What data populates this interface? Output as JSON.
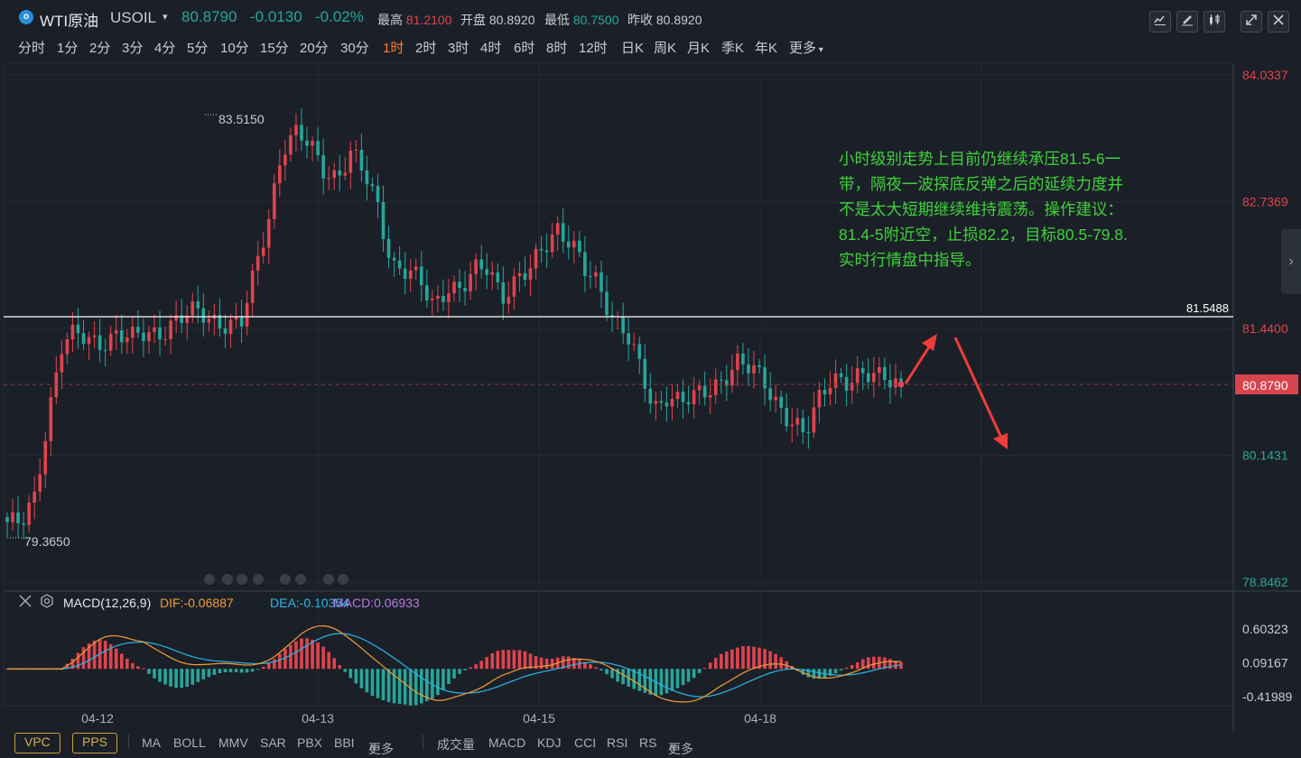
{
  "header": {
    "logo_letter": "o",
    "name": "WTI原油",
    "symbol": "USOIL",
    "last": "80.8790",
    "change": "-0.0130",
    "change_pct": "-0.02%",
    "high_label": "最高",
    "high": "81.2100",
    "open_label": "开盘",
    "open": "80.8920",
    "low_label": "最低",
    "low": "80.7500",
    "prev_label": "昨收",
    "prev": "80.8920"
  },
  "toolbar_icons": [
    "line-chart-icon",
    "pencil-icon",
    "candlestick-icon",
    "expand-icon",
    "close-icon"
  ],
  "intervals": [
    "分时",
    "1分",
    "2分",
    "3分",
    "4分",
    "5分",
    "10分",
    "15分",
    "20分",
    "30分",
    "1时",
    "2时",
    "3时",
    "4时",
    "6时",
    "8时",
    "12时",
    "日K",
    "周K",
    "月K",
    "季K",
    "年K",
    "更多"
  ],
  "active_interval": "1时",
  "main_axis": [
    "84.0337",
    "82.7369",
    "81.4400",
    "80.1431",
    "78.8462"
  ],
  "horizontal_line_value": "81.5488",
  "current_price_tag": "80.8790",
  "high_marker": "83.5150",
  "low_marker": "79.3650",
  "note_lines": [
    "小时级别走势上目前仍继续承压81.5-6一",
    "带，隔夜一波探底反弹之后的延续力度并",
    "不是太大短期继续维持震荡。操作建议：",
    "81.4-5附近空，止损82.2，目标80.5-79.8.",
    "实时行情盘中指导。"
  ],
  "macd": {
    "name": "MACD(12,26,9)",
    "dif": "DIF:-0.06887",
    "dea": "DEA:-0.10354",
    "macd": "MACD:0.06933",
    "axis": [
      "0.60323",
      "0.09167",
      "-0.41989"
    ]
  },
  "x_axis": [
    "04-12",
    "04-13",
    "04-15",
    "04-18"
  ],
  "bottom": {
    "vpc": "VPC",
    "pps": "PPS",
    "main_ind": [
      "MA",
      "BOLL",
      "MMV",
      "SAR",
      "PBX",
      "BBI",
      "更多"
    ],
    "sub_ind": [
      "成交量",
      "MACD",
      "KDJ",
      "CCI",
      "RSI",
      "RS",
      "更多"
    ]
  },
  "colors": {
    "up": "#e0434d",
    "down": "#26a69a",
    "dif": "#f39c34",
    "dea": "#29b6e8",
    "macd": "#b57ae0",
    "note": "#3fd23a",
    "active": "#ff7a2f"
  },
  "chart_data": [
    {
      "type": "candlestick",
      "title": "WTI原油 USOIL 1时",
      "y_range": [
        78.8462,
        84.0337
      ],
      "x_ticks": [
        "04-12",
        "04-13",
        "04-15",
        "04-18"
      ],
      "annotations": [
        "83.5150",
        "79.3650",
        "81.5488"
      ],
      "close_path_approx": [
        79.46,
        79.4,
        79.7,
        80.6,
        81.3,
        81.35,
        81.3,
        81.33,
        81.4,
        81.3,
        81.38,
        81.42,
        81.5,
        81.55,
        81.6,
        81.55,
        81.5,
        81.45,
        82.0,
        82.6,
        83.3,
        83.4,
        83.3,
        83.1,
        83.0,
        83.2,
        83.0,
        82.7,
        82.1,
        82.0,
        81.9,
        81.7,
        81.9,
        81.8,
        82.0,
        82.1,
        81.8,
        81.9,
        82.0,
        82.3,
        82.5,
        82.3,
        82.0,
        81.9,
        81.6,
        81.4,
        81.0,
        80.6,
        80.8,
        80.7,
        80.7,
        80.8,
        80.95,
        81.1,
        81.0,
        80.9,
        80.7,
        80.5,
        80.3,
        80.7,
        81.0,
        80.9,
        80.9,
        80.95,
        81.0,
        80.88
      ],
      "horizontal_line": 81.5488,
      "last_price": 80.879
    },
    {
      "type": "bar+line",
      "title": "MACD(12,26,9)",
      "y_range": [
        -0.41989,
        0.60323
      ],
      "series": [
        {
          "name": "DIF",
          "last": -0.06887
        },
        {
          "name": "DEA",
          "last": -0.10354
        },
        {
          "name": "MACD",
          "last": 0.06933
        }
      ]
    }
  ]
}
